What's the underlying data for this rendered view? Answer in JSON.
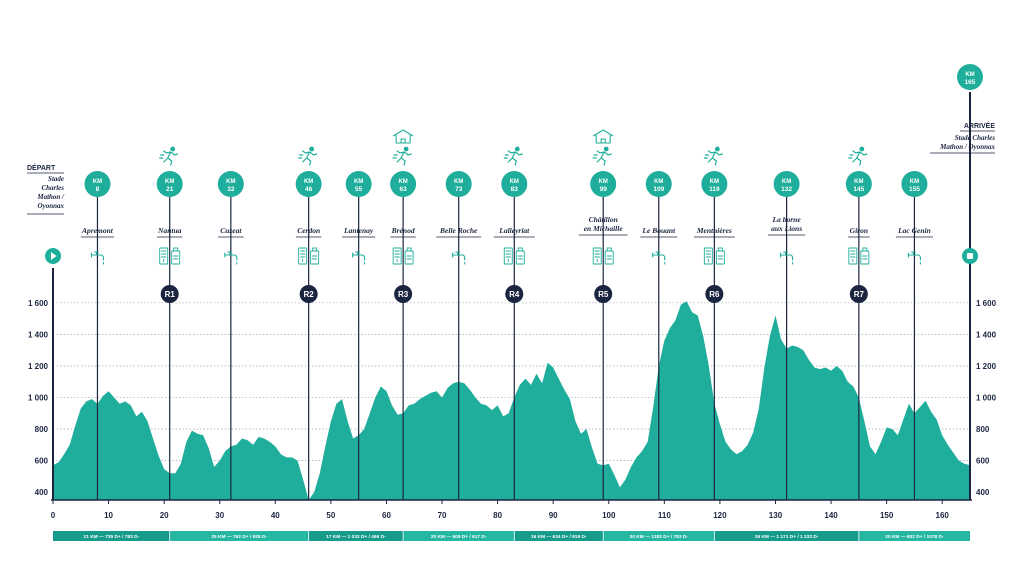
{
  "colors": {
    "teal": "#1fae9b",
    "dark": "#1b2540",
    "grid": "#8a93a0"
  },
  "chart_data": {
    "type": "area",
    "xlabel": "",
    "ylabel": "",
    "xlim": [
      0,
      165
    ],
    "ylim": [
      350,
      1650
    ],
    "x_ticks": [
      0,
      10,
      20,
      30,
      40,
      50,
      60,
      70,
      80,
      90,
      100,
      110,
      120,
      130,
      140,
      150,
      160
    ],
    "y_ticks": [
      400,
      600,
      800,
      1000,
      1200,
      1400,
      1600
    ],
    "y_tick_labels": [
      "400",
      "600",
      "800",
      "1 000",
      "1 200",
      "1 400",
      "1 600"
    ],
    "grid": true,
    "profile": [
      [
        0,
        570
      ],
      [
        1,
        590
      ],
      [
        2,
        640
      ],
      [
        3,
        700
      ],
      [
        4,
        820
      ],
      [
        5,
        930
      ],
      [
        6,
        975
      ],
      [
        7,
        990
      ],
      [
        8,
        960
      ],
      [
        9,
        1010
      ],
      [
        10,
        1040
      ],
      [
        11,
        1000
      ],
      [
        12,
        960
      ],
      [
        13,
        975
      ],
      [
        14,
        950
      ],
      [
        15,
        880
      ],
      [
        16,
        910
      ],
      [
        17,
        850
      ],
      [
        18,
        740
      ],
      [
        19,
        630
      ],
      [
        20,
        545
      ],
      [
        21,
        520
      ],
      [
        22,
        520
      ],
      [
        23,
        580
      ],
      [
        24,
        720
      ],
      [
        25,
        790
      ],
      [
        26,
        770
      ],
      [
        27,
        760
      ],
      [
        28,
        680
      ],
      [
        29,
        560
      ],
      [
        30,
        600
      ],
      [
        31,
        660
      ],
      [
        32,
        690
      ],
      [
        33,
        700
      ],
      [
        34,
        740
      ],
      [
        35,
        730
      ],
      [
        36,
        700
      ],
      [
        37,
        750
      ],
      [
        38,
        740
      ],
      [
        39,
        720
      ],
      [
        40,
        690
      ],
      [
        41,
        640
      ],
      [
        42,
        620
      ],
      [
        43,
        620
      ],
      [
        44,
        600
      ],
      [
        45,
        480
      ],
      [
        46,
        350
      ],
      [
        47,
        400
      ],
      [
        48,
        520
      ],
      [
        49,
        690
      ],
      [
        50,
        850
      ],
      [
        51,
        960
      ],
      [
        52,
        990
      ],
      [
        53,
        850
      ],
      [
        54,
        740
      ],
      [
        55,
        760
      ],
      [
        56,
        800
      ],
      [
        57,
        900
      ],
      [
        58,
        1000
      ],
      [
        59,
        1070
      ],
      [
        60,
        1040
      ],
      [
        61,
        950
      ],
      [
        62,
        890
      ],
      [
        63,
        900
      ],
      [
        64,
        950
      ],
      [
        65,
        960
      ],
      [
        66,
        990
      ],
      [
        67,
        1010
      ],
      [
        68,
        1030
      ],
      [
        69,
        1040
      ],
      [
        70,
        1000
      ],
      [
        71,
        1060
      ],
      [
        72,
        1090
      ],
      [
        73,
        1100
      ],
      [
        74,
        1090
      ],
      [
        75,
        1050
      ],
      [
        76,
        1000
      ],
      [
        77,
        960
      ],
      [
        78,
        950
      ],
      [
        79,
        920
      ],
      [
        80,
        950
      ],
      [
        81,
        880
      ],
      [
        82,
        900
      ],
      [
        83,
        1000
      ],
      [
        84,
        1080
      ],
      [
        85,
        1120
      ],
      [
        86,
        1080
      ],
      [
        87,
        1150
      ],
      [
        88,
        1090
      ],
      [
        89,
        1220
      ],
      [
        90,
        1190
      ],
      [
        91,
        1120
      ],
      [
        92,
        1050
      ],
      [
        93,
        990
      ],
      [
        94,
        850
      ],
      [
        95,
        770
      ],
      [
        96,
        800
      ],
      [
        97,
        680
      ],
      [
        98,
        580
      ],
      [
        99,
        570
      ],
      [
        100,
        580
      ],
      [
        101,
        510
      ],
      [
        102,
        430
      ],
      [
        103,
        480
      ],
      [
        104,
        560
      ],
      [
        105,
        620
      ],
      [
        106,
        660
      ],
      [
        107,
        720
      ],
      [
        108,
        940
      ],
      [
        109,
        1200
      ],
      [
        110,
        1360
      ],
      [
        111,
        1440
      ],
      [
        112,
        1490
      ],
      [
        113,
        1590
      ],
      [
        114,
        1610
      ],
      [
        115,
        1540
      ],
      [
        116,
        1520
      ],
      [
        117,
        1390
      ],
      [
        118,
        1200
      ],
      [
        119,
        960
      ],
      [
        120,
        830
      ],
      [
        121,
        720
      ],
      [
        122,
        670
      ],
      [
        123,
        640
      ],
      [
        124,
        660
      ],
      [
        125,
        700
      ],
      [
        126,
        780
      ],
      [
        127,
        930
      ],
      [
        128,
        1190
      ],
      [
        129,
        1390
      ],
      [
        130,
        1520
      ],
      [
        131,
        1370
      ],
      [
        132,
        1310
      ],
      [
        133,
        1330
      ],
      [
        134,
        1320
      ],
      [
        135,
        1300
      ],
      [
        136,
        1240
      ],
      [
        137,
        1190
      ],
      [
        138,
        1180
      ],
      [
        139,
        1190
      ],
      [
        140,
        1170
      ],
      [
        141,
        1200
      ],
      [
        142,
        1170
      ],
      [
        143,
        1100
      ],
      [
        144,
        1070
      ],
      [
        145,
        1000
      ],
      [
        146,
        850
      ],
      [
        147,
        690
      ],
      [
        148,
        640
      ],
      [
        149,
        720
      ],
      [
        150,
        810
      ],
      [
        151,
        800
      ],
      [
        152,
        760
      ],
      [
        153,
        860
      ],
      [
        154,
        960
      ],
      [
        155,
        900
      ],
      [
        156,
        940
      ],
      [
        157,
        980
      ],
      [
        158,
        910
      ],
      [
        159,
        860
      ],
      [
        160,
        760
      ],
      [
        161,
        700
      ],
      [
        162,
        650
      ],
      [
        163,
        600
      ],
      [
        164,
        580
      ],
      [
        165,
        570
      ]
    ],
    "start": {
      "title": "DÉPART",
      "lines": [
        "Stade",
        "Charles",
        "Mathon /",
        "Oyonnax"
      ]
    },
    "finish": {
      "title": "ARRIVÉE",
      "lines": [
        "Stade Charles",
        "Mathon / Oyonnax"
      ],
      "km_prefix": "KM",
      "km": "165"
    },
    "km_prefix": "KM",
    "checkpoints": [
      {
        "km": 8,
        "km_label": "8",
        "name": [
          "Apremont"
        ],
        "icons": [
          "tap"
        ],
        "runner": false,
        "house": false,
        "relay": ""
      },
      {
        "km": 21,
        "km_label": "21",
        "name": [
          "Nantua"
        ],
        "icons": [
          "food"
        ],
        "runner": true,
        "house": false,
        "relay": "R1"
      },
      {
        "km": 32,
        "km_label": "32",
        "name": [
          "Cuzeat"
        ],
        "icons": [
          "tap"
        ],
        "runner": false,
        "house": false,
        "relay": ""
      },
      {
        "km": 46,
        "km_label": "46",
        "name": [
          "Cerdon"
        ],
        "icons": [
          "food"
        ],
        "runner": true,
        "house": false,
        "relay": "R2"
      },
      {
        "km": 55,
        "km_label": "55",
        "name": [
          "Lantenay"
        ],
        "icons": [
          "tap"
        ],
        "runner": false,
        "house": false,
        "relay": ""
      },
      {
        "km": 63,
        "km_label": "63",
        "name": [
          "Brénod"
        ],
        "icons": [
          "food"
        ],
        "runner": true,
        "house": true,
        "relay": "R3"
      },
      {
        "km": 73,
        "km_label": "73",
        "name": [
          "Belle Roche"
        ],
        "icons": [
          "tap"
        ],
        "runner": false,
        "house": false,
        "relay": ""
      },
      {
        "km": 83,
        "km_label": "83",
        "name": [
          "Lalleyriat"
        ],
        "icons": [
          "food"
        ],
        "runner": true,
        "house": false,
        "relay": "R4"
      },
      {
        "km": 99,
        "km_label": "99",
        "name": [
          "Châtillon",
          "en Michaille"
        ],
        "icons": [
          "food"
        ],
        "runner": true,
        "house": true,
        "relay": "R5"
      },
      {
        "km": 109,
        "km_label": "109",
        "name": [
          "Le Bouant"
        ],
        "icons": [
          "tap"
        ],
        "runner": false,
        "house": false,
        "relay": ""
      },
      {
        "km": 119,
        "km_label": "119",
        "name": [
          "Menthières"
        ],
        "icons": [
          "food"
        ],
        "runner": true,
        "house": false,
        "relay": "R6"
      },
      {
        "km": 132,
        "km_label": "132",
        "name": [
          "La borne",
          "aux Lions"
        ],
        "icons": [
          "tap"
        ],
        "runner": false,
        "house": false,
        "relay": ""
      },
      {
        "km": 145,
        "km_label": "145",
        "name": [
          "Giron"
        ],
        "icons": [
          "food"
        ],
        "runner": true,
        "house": false,
        "relay": "R7"
      },
      {
        "km": 155,
        "km_label": "155",
        "name": [
          "Lac Genin"
        ],
        "icons": [
          "tap"
        ],
        "runner": false,
        "house": false,
        "relay": ""
      }
    ],
    "segments": [
      {
        "from": 0,
        "to": 21,
        "label": "21 KM — 735 D+ / 783 D-"
      },
      {
        "from": 21,
        "to": 46,
        "label": "25 KM — 762 D+ / 925 D-"
      },
      {
        "from": 46,
        "to": 63,
        "label": "17 KM — 1 032 D+ / 496 D-"
      },
      {
        "from": 63,
        "to": 83,
        "label": "20 KM — 609 D+ / 617 D-"
      },
      {
        "from": 83,
        "to": 99,
        "label": "16 KM — 634 D+ / 919 D-"
      },
      {
        "from": 99,
        "to": 119,
        "label": "20 KM — 1282 D+ / 783 D-"
      },
      {
        "from": 119,
        "to": 145,
        "label": "26 KM — 1 171 D+ / 1 233 D-"
      },
      {
        "from": 145,
        "to": 165,
        "label": "20 KM — 602 D+ / 1078 D-"
      }
    ]
  }
}
